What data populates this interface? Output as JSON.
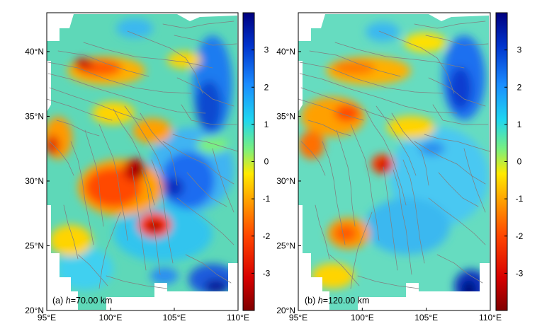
{
  "panels": [
    {
      "id": "a",
      "label_prefix": "(a) ",
      "label_var": "h",
      "label_value": "=70.00 km",
      "x_ticks": [
        {
          "lon": 95,
          "label": "95°E"
        },
        {
          "lon": 100,
          "label": "100°E"
        },
        {
          "lon": 105,
          "label": "105°E"
        },
        {
          "lon": 110,
          "label": "110°E"
        }
      ],
      "y_ticks": [
        {
          "lat": 20,
          "label": "20°N"
        },
        {
          "lat": 25,
          "label": "25°N"
        },
        {
          "lat": 30,
          "label": "30°N"
        },
        {
          "lat": 35,
          "label": "35°N"
        },
        {
          "lat": 40,
          "label": "40°N"
        }
      ],
      "colorbar_ticks": [
        {
          "value": 3,
          "label": "3"
        },
        {
          "value": 2,
          "label": "2"
        },
        {
          "value": 1,
          "label": "1"
        },
        {
          "value": 0,
          "label": "0"
        },
        {
          "value": -1,
          "label": "-1"
        },
        {
          "value": -2,
          "label": "-2"
        },
        {
          "value": -3,
          "label": "-3"
        }
      ]
    },
    {
      "id": "b",
      "label_prefix": "(b) ",
      "label_var": "h",
      "label_value": "=120.00 km",
      "x_ticks": [
        {
          "lon": 95,
          "label": "95°E"
        },
        {
          "lon": 100,
          "label": "100°E"
        },
        {
          "lon": 105,
          "label": "105°E"
        },
        {
          "lon": 110,
          "label": "110°E"
        }
      ],
      "y_ticks": [
        {
          "lat": 20,
          "label": "20°N"
        },
        {
          "lat": 25,
          "label": "25°N"
        },
        {
          "lat": 30,
          "label": "30°N"
        },
        {
          "lat": 35,
          "label": "35°N"
        },
        {
          "lat": 40,
          "label": "40°N"
        }
      ],
      "colorbar_ticks": [
        {
          "value": 3,
          "label": "3"
        },
        {
          "value": 2,
          "label": "2"
        },
        {
          "value": 1,
          "label": "1"
        },
        {
          "value": 0,
          "label": "0"
        },
        {
          "value": -1,
          "label": "-1"
        },
        {
          "value": -2,
          "label": "-2"
        },
        {
          "value": -3,
          "label": "-3"
        }
      ]
    }
  ],
  "map_extent": {
    "lon": [
      95,
      110
    ],
    "lat": [
      20,
      43
    ]
  },
  "colorbar_range": [
    -4,
    4
  ],
  "colormap": [
    "#7f0000",
    "#d70000",
    "#ff4500",
    "#ff9900",
    "#ffea00",
    "#7cf07c",
    "#1fd6f0",
    "#1a8cff",
    "#0033cc",
    "#00007f"
  ],
  "fault_color": "#808080"
}
